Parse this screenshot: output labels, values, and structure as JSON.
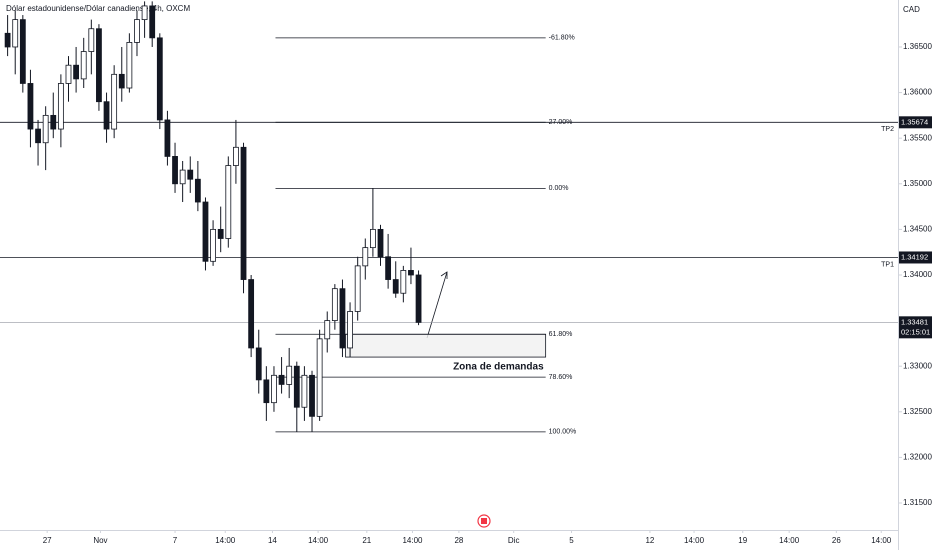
{
  "chart_data": {
    "type": "candlestick",
    "title": "Dólar estadounidense/Dólar canadiense, 4h, OXCM",
    "currency": "CAD",
    "x": [
      1,
      2,
      3,
      4,
      5,
      6,
      7,
      8,
      9,
      10,
      11,
      12,
      13,
      14,
      15,
      16,
      17,
      18,
      19,
      20,
      21,
      22,
      23,
      24,
      25,
      26,
      27,
      28,
      29,
      30,
      31,
      32,
      33,
      34,
      35,
      36,
      37,
      38,
      39,
      40,
      41,
      42,
      43,
      44,
      45,
      46,
      47,
      48,
      49,
      50,
      51,
      52,
      53,
      54,
      55
    ],
    "open": [
      1.3665,
      1.365,
      1.368,
      1.361,
      1.356,
      1.3545,
      1.3575,
      1.356,
      1.361,
      1.363,
      1.3615,
      1.3645,
      1.367,
      1.359,
      1.356,
      1.362,
      1.3605,
      1.3655,
      1.368,
      1.3695,
      1.366,
      1.357,
      1.353,
      1.35,
      1.3515,
      1.3505,
      1.348,
      1.3415,
      1.345,
      1.344,
      1.352,
      1.354,
      1.3395,
      1.332,
      1.3285,
      1.326,
      1.329,
      1.328,
      1.33,
      1.3255,
      1.329,
      1.3245,
      1.333,
      1.335,
      1.3385,
      1.332,
      1.336,
      1.341,
      1.343,
      1.345,
      1.342,
      1.3395,
      1.338,
      1.3405,
      1.34
    ],
    "high": [
      1.3685,
      1.369,
      1.3685,
      1.3625,
      1.357,
      1.3585,
      1.36,
      1.362,
      1.364,
      1.365,
      1.366,
      1.368,
      1.3675,
      1.36,
      1.363,
      1.365,
      1.3665,
      1.369,
      1.37,
      1.37,
      1.3665,
      1.358,
      1.3545,
      1.3525,
      1.353,
      1.3525,
      1.3485,
      1.346,
      1.3475,
      1.353,
      1.357,
      1.3545,
      1.34,
      1.334,
      1.33,
      1.33,
      1.331,
      1.332,
      1.3305,
      1.33,
      1.3295,
      1.334,
      1.336,
      1.339,
      1.3395,
      1.337,
      1.342,
      1.344,
      1.3495,
      1.3455,
      1.3445,
      1.3415,
      1.341,
      1.343,
      1.3405
    ],
    "low": [
      1.364,
      1.362,
      1.36,
      1.354,
      1.352,
      1.3515,
      1.355,
      1.354,
      1.359,
      1.36,
      1.3605,
      1.362,
      1.358,
      1.3545,
      1.355,
      1.359,
      1.36,
      1.364,
      1.366,
      1.365,
      1.356,
      1.352,
      1.349,
      1.348,
      1.349,
      1.347,
      1.3405,
      1.341,
      1.3425,
      1.343,
      1.35,
      1.338,
      1.331,
      1.327,
      1.324,
      1.325,
      1.327,
      1.3265,
      1.3228,
      1.324,
      1.3228,
      1.324,
      1.3315,
      1.334,
      1.331,
      1.331,
      1.335,
      1.3395,
      1.342,
      1.341,
      1.3385,
      1.3375,
      1.337,
      1.339,
      1.3345
    ],
    "close": [
      1.365,
      1.368,
      1.361,
      1.356,
      1.3545,
      1.3575,
      1.356,
      1.361,
      1.363,
      1.3615,
      1.3645,
      1.367,
      1.359,
      1.356,
      1.362,
      1.3605,
      1.3655,
      1.368,
      1.3695,
      1.366,
      1.357,
      1.353,
      1.35,
      1.3515,
      1.3505,
      1.348,
      1.3415,
      1.345,
      1.344,
      1.352,
      1.354,
      1.3395,
      1.332,
      1.3285,
      1.326,
      1.329,
      1.328,
      1.33,
      1.3255,
      1.329,
      1.3245,
      1.333,
      1.335,
      1.3385,
      1.332,
      1.336,
      1.341,
      1.343,
      1.345,
      1.342,
      1.3395,
      1.338,
      1.3405,
      1.34,
      1.3348
    ],
    "xlim": [
      0,
      118
    ],
    "xticks": [
      {
        "value": 6.2,
        "label": "27"
      },
      {
        "value": 13.2,
        "label": "Nov"
      },
      {
        "value": 23,
        "label": "7"
      },
      {
        "value": 29.6,
        "label": "14:00"
      },
      {
        "value": 35.8,
        "label": "14"
      },
      {
        "value": 41.8,
        "label": "14:00"
      },
      {
        "value": 48.2,
        "label": "21"
      },
      {
        "value": 54.2,
        "label": "14:00"
      },
      {
        "value": 60.3,
        "label": "28"
      },
      {
        "value": 67.5,
        "label": "Dic"
      },
      {
        "value": 75.1,
        "label": "5"
      },
      {
        "value": 85.4,
        "label": "12"
      },
      {
        "value": 91.2,
        "label": "14:00"
      },
      {
        "value": 97.6,
        "label": "19"
      },
      {
        "value": 103.7,
        "label": "14:00"
      },
      {
        "value": 109.9,
        "label": "26"
      },
      {
        "value": 115.8,
        "label": "14:00"
      }
    ],
    "ylim": [
      1.31204,
      1.37015
    ],
    "yticks": [
      {
        "value": 1.365,
        "label": "1.36500"
      },
      {
        "value": 1.36,
        "label": "1.36000"
      },
      {
        "value": 1.355,
        "label": "1.35500"
      },
      {
        "value": 1.35,
        "label": "1.35000"
      },
      {
        "value": 1.345,
        "label": "1.34500"
      },
      {
        "value": 1.34,
        "label": "1.34000"
      },
      {
        "value": 1.335,
        "label": "1.33500"
      },
      {
        "value": 1.33,
        "label": "1.33000"
      },
      {
        "value": 1.325,
        "label": "1.32500"
      },
      {
        "value": 1.32,
        "label": "1.32000"
      },
      {
        "value": 1.315,
        "label": "1.31500"
      }
    ],
    "levels": [
      {
        "name": "TP2",
        "value": 1.35674
      },
      {
        "name": "TP1",
        "value": 1.34192
      }
    ],
    "last_price": {
      "value": 1.33481,
      "countdown": "02:15:01"
    },
    "fib": {
      "x": [
        36.2,
        71.7
      ],
      "levels": [
        {
          "label": "-61.80%",
          "value": 1.366
        },
        {
          "label": "27.00%",
          "value": 1.35674
        },
        {
          "label": "0.00%",
          "value": 1.3495
        },
        {
          "label": "61.80%",
          "value": 1.3335
        },
        {
          "label": "78.60%",
          "value": 1.3288
        },
        {
          "label": "100.00%",
          "value": 1.3228
        }
      ]
    },
    "zone": {
      "label": "Zona de demandas",
      "x": [
        45.4,
        71.7
      ],
      "top": 1.3335,
      "bottom": 1.331
    }
  }
}
